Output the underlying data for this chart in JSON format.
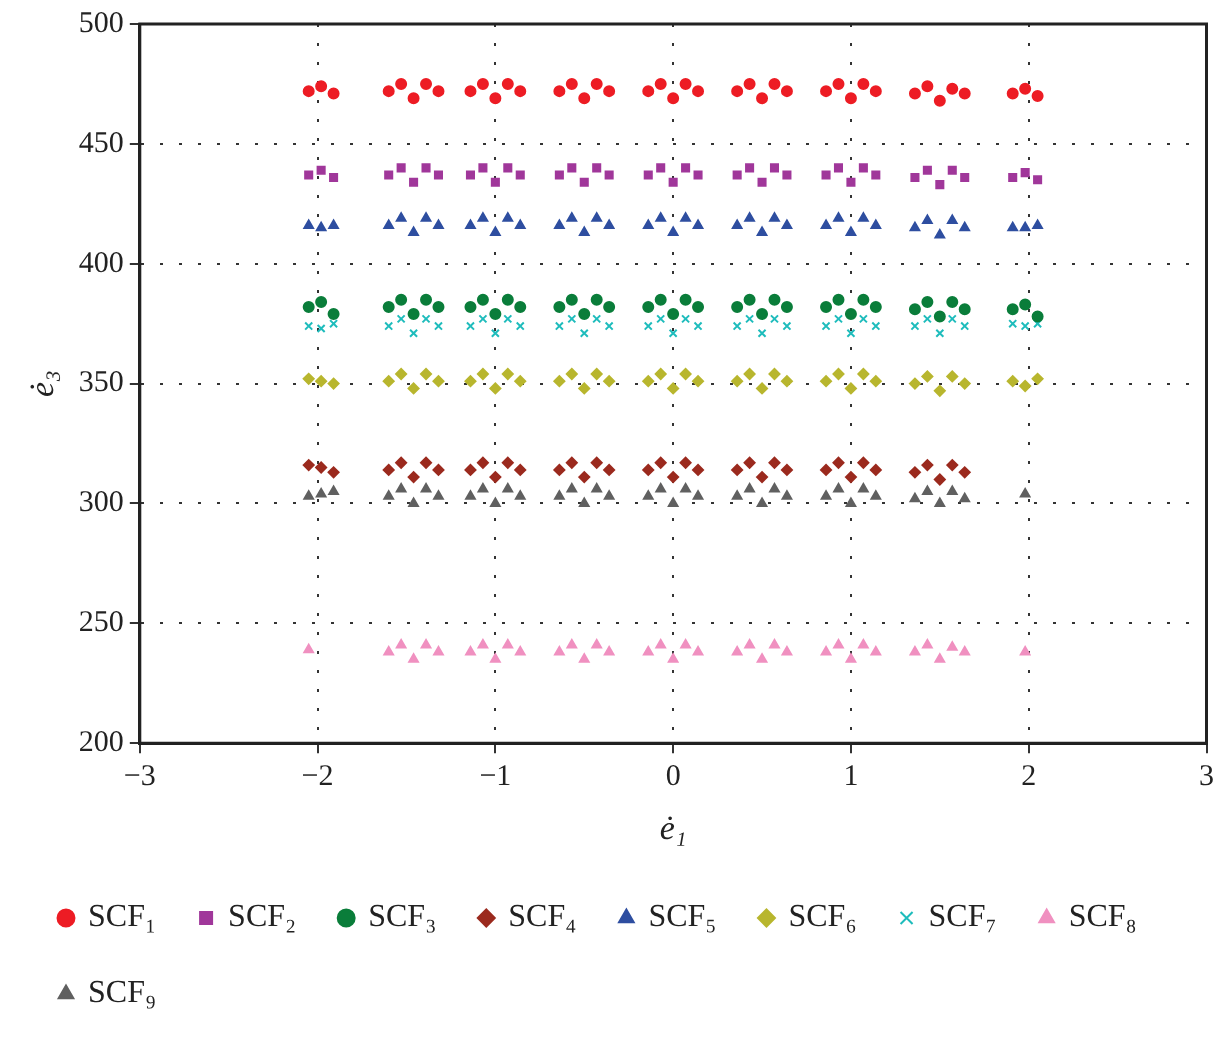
{
  "chart_data": {
    "type": "scatter",
    "xlabel": "ė₁",
    "ylabel": "ė₃",
    "xlim": [
      -3,
      3
    ],
    "xticks": [
      -3,
      -2,
      -1,
      0,
      1,
      2,
      3
    ],
    "ylim": [
      200,
      500
    ],
    "yticks": [
      200,
      250,
      300,
      350,
      400,
      450,
      500
    ],
    "grid": true,
    "legend": "bottom",
    "x": [
      -2.05,
      -1.98,
      -1.91,
      -1.6,
      -1.53,
      -1.46,
      -1.39,
      -1.32,
      -1.14,
      -1.07,
      -1,
      -0.93,
      -0.86,
      -0.64,
      -0.57,
      -0.5,
      -0.43,
      -0.36,
      -0.14,
      -0.07,
      0,
      0.07,
      0.14,
      0.36,
      0.43,
      0.5,
      0.57,
      0.64,
      0.86,
      0.93,
      1,
      1.07,
      1.14,
      1.36,
      1.43,
      1.5,
      1.57,
      1.64,
      1.91,
      1.98,
      2.05
    ],
    "series": [
      {
        "name": "SCF₁",
        "color": "#ed1c24",
        "marker": "circle",
        "values": [
          472,
          474,
          471,
          472,
          475,
          469,
          475,
          472,
          472,
          475,
          469,
          475,
          472,
          472,
          475,
          469,
          475,
          472,
          472,
          475,
          469,
          475,
          472,
          472,
          475,
          469,
          475,
          472,
          472,
          475,
          469,
          475,
          472,
          471,
          474,
          468,
          473,
          471,
          471,
          473,
          470
        ]
      },
      {
        "name": "SCF₂",
        "color": "#a0379a",
        "marker": "square",
        "values": [
          437,
          439,
          436,
          437,
          440,
          434,
          440,
          437,
          437,
          440,
          434,
          440,
          437,
          437,
          440,
          434,
          440,
          437,
          437,
          440,
          434,
          440,
          437,
          437,
          440,
          434,
          440,
          437,
          437,
          440,
          434,
          440,
          437,
          436,
          439,
          433,
          439,
          436,
          436,
          438,
          435
        ]
      },
      {
        "name": "SCF₃",
        "color": "#0a7d3a",
        "marker": "circle",
        "values": [
          382,
          384,
          379,
          382,
          385,
          379,
          385,
          382,
          382,
          385,
          379,
          385,
          382,
          382,
          385,
          379,
          385,
          382,
          382,
          385,
          379,
          385,
          382,
          382,
          385,
          379,
          385,
          382,
          382,
          385,
          379,
          385,
          382,
          381,
          384,
          378,
          384,
          381,
          381,
          383,
          378
        ]
      },
      {
        "name": "SCF₄",
        "color": "#9b2a1e",
        "marker": "diamond",
        "values": [
          316,
          315,
          313,
          314,
          317,
          311,
          317,
          314,
          314,
          317,
          311,
          317,
          314,
          314,
          317,
          311,
          317,
          314,
          314,
          317,
          311,
          317,
          314,
          314,
          317,
          311,
          317,
          314,
          314,
          317,
          311,
          317,
          314,
          313,
          316,
          310,
          316,
          313,
          null,
          null,
          null
        ]
      },
      {
        "name": "SCF₅",
        "color": "#2e4ea0",
        "marker": "triangle",
        "values": [
          416,
          415,
          416,
          416,
          419,
          413,
          419,
          416,
          416,
          419,
          413,
          419,
          416,
          416,
          419,
          413,
          419,
          416,
          416,
          419,
          413,
          419,
          416,
          416,
          419,
          413,
          419,
          416,
          416,
          419,
          413,
          419,
          416,
          415,
          418,
          412,
          418,
          415,
          415,
          415,
          416
        ]
      },
      {
        "name": "SCF₆",
        "color": "#b8b62e",
        "marker": "diamond",
        "values": [
          352,
          351,
          350,
          351,
          354,
          348,
          354,
          351,
          351,
          354,
          348,
          354,
          351,
          351,
          354,
          348,
          354,
          351,
          351,
          354,
          348,
          354,
          351,
          351,
          354,
          348,
          354,
          351,
          351,
          354,
          348,
          354,
          351,
          350,
          353,
          347,
          353,
          350,
          351,
          349,
          352
        ]
      },
      {
        "name": "SCF₇",
        "color": "#1ebcbc",
        "marker": "cross",
        "values": [
          374,
          373,
          375,
          374,
          377,
          371,
          377,
          374,
          374,
          377,
          371,
          377,
          374,
          374,
          377,
          371,
          377,
          374,
          374,
          377,
          371,
          377,
          374,
          374,
          377,
          371,
          377,
          374,
          374,
          377,
          371,
          377,
          374,
          374,
          377,
          371,
          377,
          374,
          375,
          374,
          375
        ]
      },
      {
        "name": "SCF₈",
        "color": "#f090c0",
        "marker": "triangle",
        "values": [
          239,
          null,
          null,
          238,
          241,
          235,
          241,
          238,
          238,
          241,
          235,
          241,
          238,
          238,
          241,
          235,
          241,
          238,
          238,
          241,
          235,
          241,
          238,
          238,
          241,
          235,
          241,
          238,
          238,
          241,
          235,
          241,
          238,
          238,
          241,
          235,
          240,
          238,
          null,
          238,
          null
        ]
      },
      {
        "name": "SCF₉",
        "color": "#606060",
        "marker": "triangle",
        "values": [
          303,
          304,
          305,
          303,
          306,
          300,
          306,
          303,
          303,
          306,
          300,
          306,
          303,
          303,
          306,
          300,
          306,
          303,
          303,
          306,
          300,
          306,
          303,
          303,
          306,
          300,
          306,
          303,
          303,
          306,
          300,
          306,
          303,
          302,
          305,
          300,
          305,
          302,
          null,
          304,
          null
        ]
      }
    ]
  }
}
